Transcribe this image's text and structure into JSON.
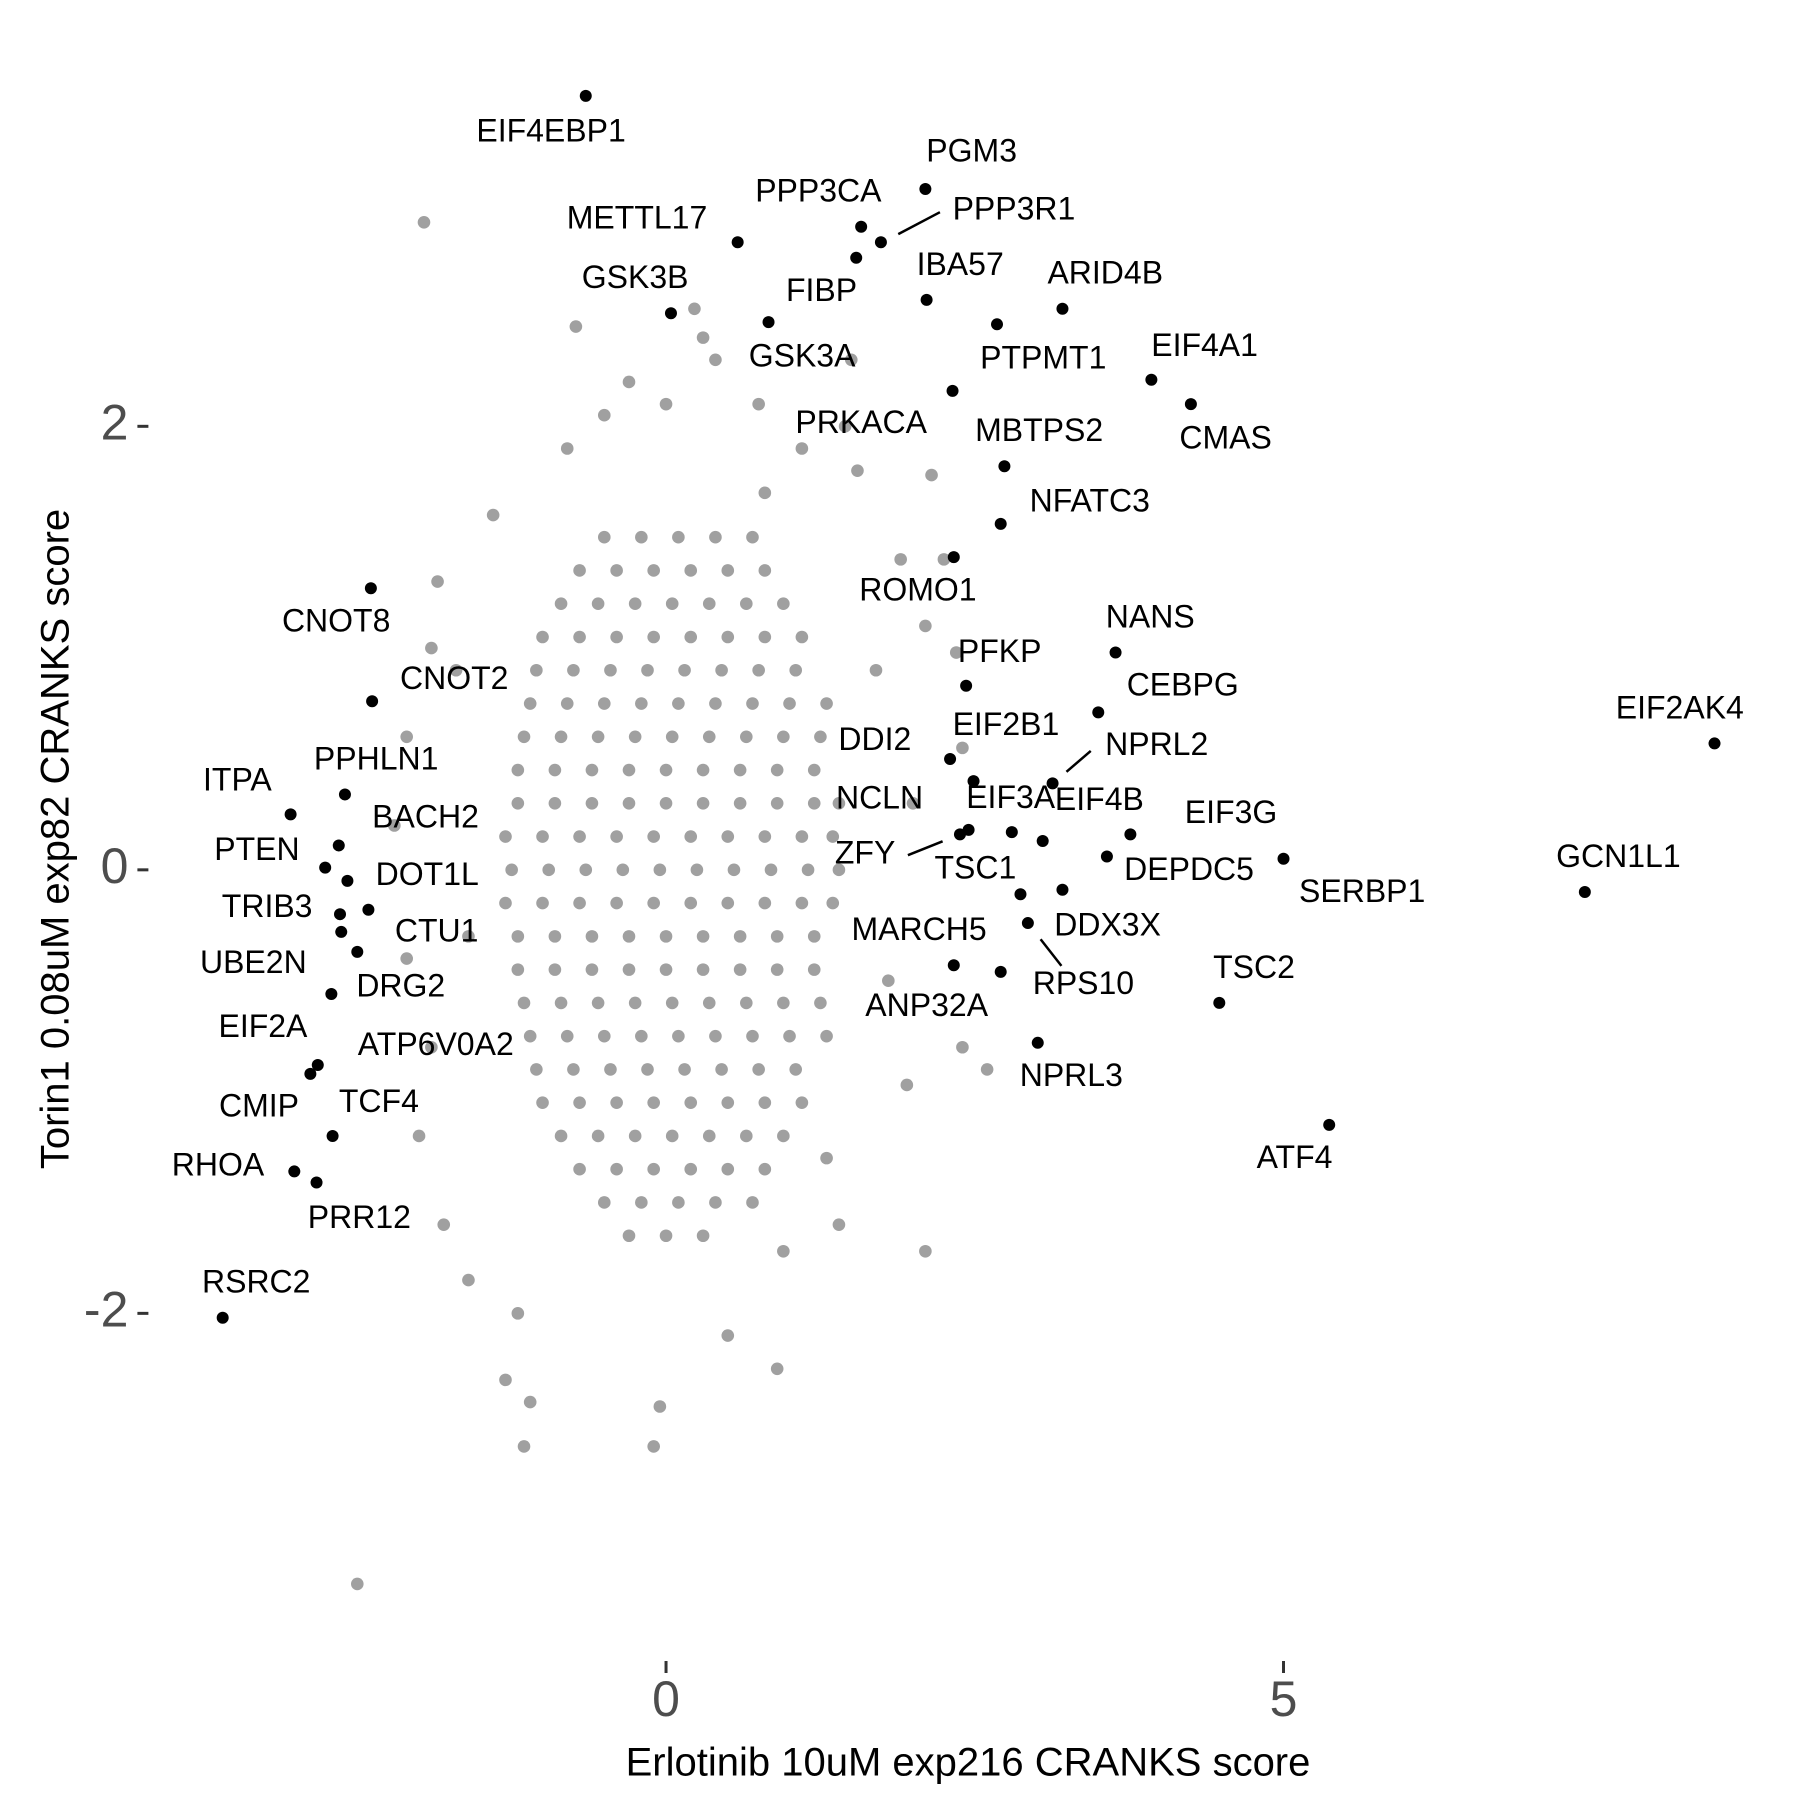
{
  "chart_data": {
    "type": "scatter",
    "x_label": "Erlotinib 10uM exp216 CRANKS score",
    "y_label": "Torin1 0.08uM exp82 CRANKS score",
    "xlim": [
      -3.9,
      8.8
    ],
    "ylim": [
      -3.5,
      3.6
    ],
    "xticks": [
      0,
      5
    ],
    "yticks": [
      -2,
      0,
      2
    ],
    "grid": false,
    "series": [
      {
        "color": "#a0a0a0",
        "x": [
          -1.96,
          -0.73,
          0.23,
          -0.3,
          0.4,
          0.75,
          1.5,
          1.45,
          1.55,
          2.15,
          -0.5,
          0.0,
          1.1,
          2.1,
          2.4,
          2.0,
          -1.85,
          -1.9,
          -2.1,
          -2.2,
          -2.1,
          -1.9,
          -2.0,
          -1.8,
          -1.6,
          -1.3,
          -1.1,
          -1.15,
          -0.1,
          -0.05,
          0.9,
          0.95,
          1.4,
          2.1,
          2.4,
          2.6,
          1.95,
          -2.5,
          2.35,
          1.3,
          -1.7,
          -1.6,
          1.9,
          1.7,
          1.8,
          -1.4,
          -1.2,
          0.5,
          0.3,
          0.8,
          -0.8,
          2.25,
          -0.5,
          -0.2,
          0.1,
          0.4,
          0.7,
          -0.7,
          -0.4,
          -0.1,
          0.2,
          0.5,
          0.8,
          -0.85,
          -0.55,
          -0.25,
          0.05,
          0.35,
          0.65,
          0.95,
          -1.0,
          -0.7,
          -0.4,
          -0.1,
          0.2,
          0.5,
          0.8,
          1.1,
          -1.05,
          -0.75,
          -0.45,
          -0.15,
          0.15,
          0.45,
          0.75,
          1.05,
          -1.1,
          -0.8,
          -0.5,
          -0.2,
          0.1,
          0.4,
          0.7,
          1.0,
          1.3,
          -1.15,
          -0.85,
          -0.55,
          -0.25,
          0.05,
          0.35,
          0.65,
          0.95,
          1.25,
          -1.2,
          -0.9,
          -0.6,
          -0.3,
          0,
          0.3,
          0.6,
          0.9,
          1.2,
          -1.2,
          -0.9,
          -0.6,
          -0.3,
          0,
          0.3,
          0.6,
          0.9,
          1.2,
          1.4,
          -1.3,
          -1.0,
          -0.7,
          -0.4,
          -0.1,
          0.2,
          0.5,
          0.8,
          1.1,
          1.35,
          -1.25,
          -0.95,
          -0.65,
          -0.35,
          -0.05,
          0.25,
          0.55,
          0.85,
          1.15,
          1.4,
          -1.3,
          -1.0,
          -0.7,
          -0.4,
          -0.1,
          0.2,
          0.5,
          0.8,
          1.1,
          1.35,
          -1.2,
          -0.9,
          -0.6,
          -0.3,
          0,
          0.3,
          0.6,
          0.9,
          1.2,
          -1.2,
          -0.9,
          -0.6,
          -0.3,
          0,
          0.3,
          0.6,
          0.9,
          1.2,
          -1.15,
          -0.85,
          -0.55,
          -0.25,
          0.05,
          0.35,
          0.65,
          0.95,
          1.25,
          -1.1,
          -0.8,
          -0.5,
          -0.2,
          0.1,
          0.4,
          0.7,
          1.0,
          1.3,
          -1.05,
          -0.75,
          -0.45,
          -0.15,
          0.15,
          0.45,
          0.75,
          1.05,
          -1.0,
          -0.7,
          -0.4,
          -0.1,
          0.2,
          0.5,
          0.8,
          1.1,
          -0.85,
          -0.55,
          -0.25,
          0.05,
          0.35,
          0.65,
          0.95,
          -0.7,
          -0.4,
          -0.1,
          0.2,
          0.5,
          0.8,
          -0.5,
          -0.2,
          0.1,
          0.4,
          0.7,
          -0.3,
          0,
          0.3
        ],
        "values": [
          2.92,
          2.45,
          2.53,
          2.2,
          2.3,
          2.1,
          2.3,
          2.0,
          1.8,
          1.78,
          2.05,
          2.1,
          1.9,
          1.1,
          0.55,
          0.3,
          1.3,
          1.0,
          0.6,
          0.2,
          -0.4,
          -0.8,
          -1.2,
          -1.6,
          -1.85,
          -2.3,
          -2.4,
          -2.6,
          -2.6,
          -2.42,
          -2.25,
          -1.72,
          -1.6,
          -1.72,
          -0.8,
          -0.9,
          -0.97,
          -3.22,
          0.98,
          -1.3,
          0.9,
          -0.3,
          1.4,
          0.9,
          -0.5,
          1.6,
          -2.0,
          -2.1,
          2.4,
          1.7,
          1.9,
          1.4,
          1.5,
          1.5,
          1.5,
          1.5,
          1.5,
          1.35,
          1.35,
          1.35,
          1.35,
          1.35,
          1.35,
          1.2,
          1.2,
          1.2,
          1.2,
          1.2,
          1.2,
          1.2,
          1.05,
          1.05,
          1.05,
          1.05,
          1.05,
          1.05,
          1.05,
          1.05,
          0.9,
          0.9,
          0.9,
          0.9,
          0.9,
          0.9,
          0.9,
          0.9,
          0.75,
          0.75,
          0.75,
          0.75,
          0.75,
          0.75,
          0.75,
          0.75,
          0.75,
          0.6,
          0.6,
          0.6,
          0.6,
          0.6,
          0.6,
          0.6,
          0.6,
          0.6,
          0.45,
          0.45,
          0.45,
          0.45,
          0.45,
          0.45,
          0.45,
          0.45,
          0.45,
          0.3,
          0.3,
          0.3,
          0.3,
          0.3,
          0.3,
          0.3,
          0.3,
          0.3,
          0.3,
          0.15,
          0.15,
          0.15,
          0.15,
          0.15,
          0.15,
          0.15,
          0.15,
          0.15,
          0.15,
          0,
          0,
          0,
          0,
          0,
          0,
          0,
          0,
          0,
          0,
          -0.15,
          -0.15,
          -0.15,
          -0.15,
          -0.15,
          -0.15,
          -0.15,
          -0.15,
          -0.15,
          -0.15,
          -0.3,
          -0.3,
          -0.3,
          -0.3,
          -0.3,
          -0.3,
          -0.3,
          -0.3,
          -0.3,
          -0.45,
          -0.45,
          -0.45,
          -0.45,
          -0.45,
          -0.45,
          -0.45,
          -0.45,
          -0.45,
          -0.6,
          -0.6,
          -0.6,
          -0.6,
          -0.6,
          -0.6,
          -0.6,
          -0.6,
          -0.6,
          -0.75,
          -0.75,
          -0.75,
          -0.75,
          -0.75,
          -0.75,
          -0.75,
          -0.75,
          -0.75,
          -0.9,
          -0.9,
          -0.9,
          -0.9,
          -0.9,
          -0.9,
          -0.9,
          -0.9,
          -1.05,
          -1.05,
          -1.05,
          -1.05,
          -1.05,
          -1.05,
          -1.05,
          -1.05,
          -1.2,
          -1.2,
          -1.2,
          -1.2,
          -1.2,
          -1.2,
          -1.2,
          -1.35,
          -1.35,
          -1.35,
          -1.35,
          -1.35,
          -1.35,
          -1.5,
          -1.5,
          -1.5,
          -1.5,
          -1.5,
          -1.65,
          -1.65,
          -1.65
        ]
      },
      {
        "color": "#000000",
        "labels": [
          "EIF4EBP1",
          "PGM3",
          "PPP3CA",
          "PPP3R1",
          "METTL17",
          "FIBP",
          "IBA57",
          "GSK3B",
          "ARID4B",
          "GSK3A",
          "PTPMT1",
          "PRKACA",
          "EIF4A1",
          "CMAS",
          "MBTPS2",
          "NFATC3",
          "ROMO1",
          "CNOT8",
          "NANS",
          "PFKP",
          "CNOT2",
          "CEBPG",
          "EIF2AK4",
          "DDI2",
          "EIF2B1",
          "NPRL2",
          "ITPA",
          "PPHLN1",
          "NCLN",
          "EIF3A",
          "EIF4B",
          "ZFY",
          "EIF3G",
          "BACH2",
          "PTEN",
          "DOT1L",
          "SERBP1",
          "DEPDC5",
          "TSC1",
          "DDX3X",
          "GCN1L1",
          "TRIB3",
          "CTU1",
          "RPS10",
          "UBE2N",
          "CMIP",
          "MARCH5",
          "ANP32A",
          "DRG2",
          "TSC2",
          "NPRL3",
          "ATP6V0A2",
          "EIF2A",
          "TCF4",
          "ATF4",
          "RHOA",
          "PRR12",
          "RSRC2"
        ],
        "x": [
          -0.65,
          2.1,
          1.58,
          1.74,
          0.58,
          1.54,
          2.11,
          0.04,
          3.21,
          0.83,
          2.68,
          2.32,
          3.93,
          4.25,
          2.74,
          2.71,
          2.33,
          -2.39,
          3.64,
          2.43,
          -2.38,
          3.5,
          8.49,
          2.3,
          2.49,
          3.13,
          -3.04,
          -2.6,
          2.45,
          2.8,
          3.05,
          2.38,
          3.76,
          -2.65,
          -2.76,
          -2.58,
          5.0,
          3.57,
          2.87,
          3.21,
          7.44,
          -2.64,
          -2.41,
          2.93,
          -2.63,
          -2.5,
          2.33,
          2.71,
          -2.71,
          4.48,
          3.01,
          -2.82,
          -2.88,
          -2.7,
          5.37,
          -3.01,
          -2.83,
          -3.59
        ],
        "values": [
          3.49,
          3.07,
          2.9,
          2.83,
          2.83,
          2.76,
          2.57,
          2.51,
          2.53,
          2.47,
          2.46,
          2.16,
          2.21,
          2.1,
          1.82,
          1.56,
          1.41,
          1.27,
          0.98,
          0.83,
          0.76,
          0.71,
          0.57,
          0.5,
          0.4,
          0.39,
          0.25,
          0.34,
          0.18,
          0.17,
          0.13,
          0.16,
          0.16,
          0.11,
          0.01,
          -0.05,
          0.05,
          0.06,
          -0.11,
          -0.09,
          -0.1,
          -0.2,
          -0.18,
          -0.24,
          -0.28,
          -0.37,
          -0.43,
          -0.46,
          -0.56,
          -0.6,
          -0.78,
          -0.88,
          -0.92,
          -1.2,
          -1.15,
          -1.36,
          -1.41,
          -2.02
        ]
      }
    ]
  }
}
